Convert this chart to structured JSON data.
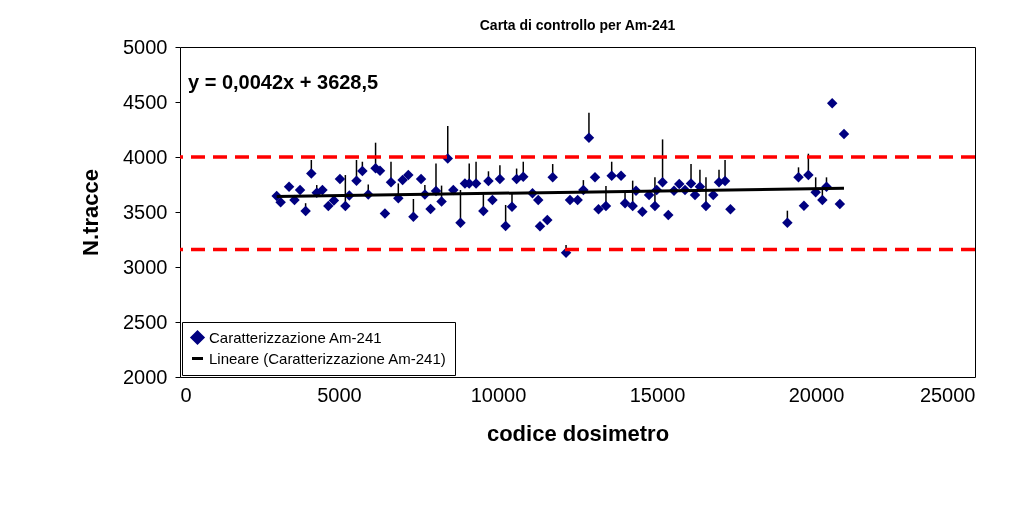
{
  "chart_data": {
    "type": "scatter",
    "title": "Carta di controllo per Am-241",
    "xlabel": "codice dosimetro",
    "ylabel": "N.tracce",
    "annotations": [
      "y = 0,0042x + 3628,5"
    ],
    "xlim": [
      0,
      25000
    ],
    "xticks": [
      0,
      5000,
      10000,
      15000,
      20000,
      25000
    ],
    "ylim": [
      2000,
      5000
    ],
    "yticks": [
      2000,
      2500,
      3000,
      3500,
      4000,
      4500,
      5000
    ],
    "grid": false,
    "legend": "bottom left",
    "ref_lines": [
      {
        "axis": "y",
        "value": 4000,
        "color": "#ff0000",
        "line_style": "dashed"
      },
      {
        "axis": "y",
        "value": 3160,
        "color": "#ff0000",
        "line_style": "dashed"
      }
    ],
    "series": [
      {
        "name": "Caratterizzazione Am-241",
        "marker": "diamond",
        "color": "#000080",
        "x": [
          3040,
          3165,
          3430,
          3600,
          3775,
          3950,
          4130,
          4300,
          4480,
          4665,
          4840,
          5030,
          5200,
          5325,
          5550,
          5735,
          5920,
          6150,
          6290,
          6445,
          6635,
          6865,
          7000,
          7180,
          7340,
          7580,
          7700,
          7880,
          8050,
          8225,
          8420,
          8595,
          8820,
          8960,
          9095,
          9310,
          9540,
          9700,
          9825,
          10060,
          10240,
          10440,
          10585,
          10795,
          11085,
          11265,
          11320,
          11550,
          11720,
          12140,
          12265,
          12505,
          12685,
          12860,
          13050,
          13160,
          13395,
          13575,
          13870,
          13995,
          14235,
          14340,
          14540,
          14750,
          14935,
          14990,
          15175,
          15355,
          15535,
          15700,
          15880,
          16070,
          16195,
          16350,
          16540,
          16770,
          16950,
          17140,
          17310,
          19100,
          19450,
          19620,
          19760,
          19990,
          20200,
          20330,
          20510,
          20750,
          20880
        ],
        "values": [
          3645,
          3588,
          3730,
          3610,
          3700,
          3510,
          3850,
          3675,
          3700,
          3555,
          3605,
          3800,
          3555,
          3650,
          3785,
          3873,
          3660,
          3897,
          3875,
          3487,
          3770,
          3624,
          3790,
          3836,
          3457,
          3800,
          3660,
          3527,
          3690,
          3595,
          3987,
          3700,
          3403,
          3760,
          3760,
          3760,
          3510,
          3782,
          3610,
          3800,
          3373,
          3548,
          3800,
          3821,
          3670,
          3610,
          3370,
          3427,
          3815,
          3130,
          3610,
          3610,
          3700,
          4175,
          3815,
          3524,
          3555,
          3830,
          3830,
          3579,
          3555,
          3694,
          3503,
          3655,
          3555,
          3700,
          3770,
          3473,
          3694,
          3755,
          3700,
          3760,
          3655,
          3730,
          3555,
          3655,
          3770,
          3782,
          3524,
          3403,
          3815,
          3557,
          3836,
          3679,
          3610,
          3730,
          4488,
          3573,
          4209
        ],
        "errors": [
          null,
          null,
          null,
          null,
          null,
          [
            3510,
            3580
          ],
          [
            3850,
            3973
          ],
          [
            3675,
            3745
          ],
          null,
          null,
          null,
          null,
          [
            3555,
            3836
          ],
          null,
          [
            3785,
            3973
          ],
          [
            3873,
            3957
          ],
          [
            3660,
            3750
          ],
          [
            3897,
            4130
          ],
          null,
          null,
          [
            3770,
            3957
          ],
          [
            3624,
            3760
          ],
          null,
          null,
          [
            3457,
            3618
          ],
          null,
          [
            3660,
            3745
          ],
          null,
          [
            3690,
            3942
          ],
          [
            3595,
            3740
          ],
          [
            3987,
            4282
          ],
          null,
          [
            3403,
            3700
          ],
          null,
          [
            3760,
            3942
          ],
          [
            3760,
            3957
          ],
          [
            3510,
            3661
          ],
          [
            3782,
            3870
          ],
          null,
          [
            3800,
            3925
          ],
          [
            3373,
            3564
          ],
          [
            3548,
            3665
          ],
          [
            3800,
            3895
          ],
          [
            3821,
            3957
          ],
          null,
          null,
          null,
          null,
          [
            3815,
            3936
          ],
          [
            3130,
            3200
          ],
          null,
          null,
          [
            3700,
            3790
          ],
          [
            4175,
            4402
          ],
          null,
          null,
          [
            3555,
            3736
          ],
          [
            3830,
            3957
          ],
          null,
          [
            3579,
            3685
          ],
          [
            3555,
            3785
          ],
          null,
          null,
          null,
          [
            3555,
            3815
          ],
          null,
          [
            3770,
            4160
          ],
          null,
          null,
          null,
          null,
          [
            3760,
            3936
          ],
          null,
          [
            3730,
            3885
          ],
          [
            3555,
            3815
          ],
          null,
          [
            3770,
            3885
          ],
          [
            3782,
            3973
          ],
          null,
          [
            3403,
            3512
          ],
          [
            3815,
            3906
          ],
          null,
          [
            3836,
            4030
          ],
          [
            3679,
            3815
          ],
          [
            3610,
            3710
          ],
          [
            3730,
            3815
          ],
          null,
          null,
          null
        ]
      },
      {
        "name": "Lineare (Caratterizzazione Am-241)",
        "type": "line",
        "color": "#000000",
        "x": [
          3040,
          20880
        ],
        "values": [
          3641,
          3716
        ]
      }
    ]
  }
}
